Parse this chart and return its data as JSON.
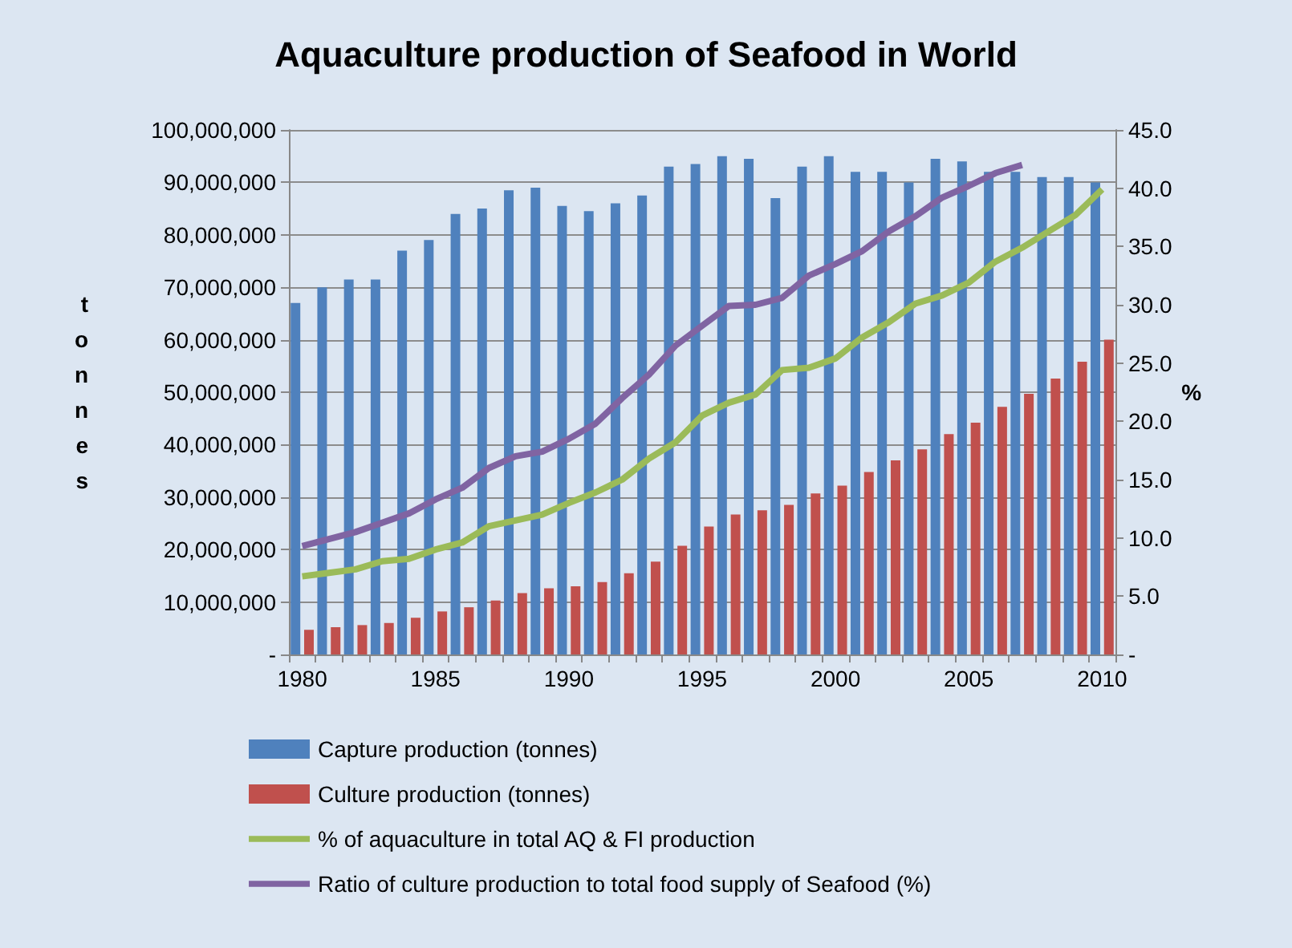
{
  "chart_data": {
    "type": "bar",
    "title": "Aquaculture production of Seafood in World",
    "ylabel": "tonnes",
    "y2label": "%",
    "categories": [
      "1980",
      null,
      null,
      null,
      null,
      "1985",
      null,
      null,
      null,
      null,
      "1990",
      null,
      null,
      null,
      null,
      "1995",
      null,
      null,
      null,
      null,
      "2000",
      null,
      null,
      null,
      null,
      "2005",
      null,
      null,
      null,
      null,
      "2010"
    ],
    "series": [
      {
        "name": "Capture production (tonnes)",
        "color": "#4f81bd",
        "values": [
          67000000,
          70000000,
          71500000,
          71500000,
          77000000,
          79000000,
          84000000,
          85000000,
          88500000,
          89000000,
          85500000,
          84500000,
          86000000,
          87500000,
          93000000,
          93500000,
          95000000,
          94500000,
          87000000,
          93000000,
          95000000,
          92000000,
          92000000,
          90000000,
          94500000,
          94000000,
          92000000,
          92000000,
          91000000,
          91000000,
          90000000
        ]
      },
      {
        "name": "Culture production (tonnes)",
        "color": "#c0504d",
        "values": [
          4700000,
          5200000,
          5600000,
          6000000,
          7000000,
          8200000,
          9000000,
          10300000,
          11700000,
          12600000,
          13000000,
          13800000,
          15500000,
          17700000,
          20700000,
          24400000,
          26700000,
          27500000,
          28500000,
          30700000,
          32200000,
          34800000,
          37000000,
          39100000,
          42000000,
          44200000,
          47200000,
          49700000,
          52600000,
          55800000,
          60000000
        ]
      },
      {
        "name": "% of aquaculture in total AQ & FI production",
        "type": "line",
        "axis": "y2",
        "color": "#9bbb59",
        "values": [
          6.7,
          7.0,
          7.3,
          8.0,
          8.2,
          9.0,
          9.6,
          11.0,
          11.5,
          12.0,
          13.0,
          13.9,
          15.0,
          16.8,
          18.2,
          20.5,
          21.6,
          22.3,
          24.4,
          24.6,
          25.4,
          27.2,
          28.5,
          30.1,
          30.8,
          31.9,
          33.7,
          34.9,
          36.3,
          37.7,
          39.9
        ]
      },
      {
        "name": "Ratio of culture production to total food supply of Seafood (%)",
        "type": "line",
        "axis": "y2",
        "color": "#8064a2",
        "values": [
          9.3,
          9.9,
          10.5,
          11.3,
          12.1,
          13.3,
          14.3,
          16.0,
          17.0,
          17.4,
          18.5,
          19.8,
          22.0,
          24.0,
          26.5,
          28.2,
          29.9,
          30.0,
          30.6,
          32.5,
          33.5,
          34.6,
          36.3,
          37.6,
          39.2,
          40.2,
          41.3,
          42.0,
          null,
          null,
          null
        ]
      }
    ],
    "ylim": [
      0,
      100000000
    ],
    "yticks": [
      {
        "value": 0,
        "label": "-"
      },
      {
        "value": 10000000,
        "label": "10,000,000"
      },
      {
        "value": 20000000,
        "label": "20,000,000"
      },
      {
        "value": 30000000,
        "label": "30,000,000"
      },
      {
        "value": 40000000,
        "label": "40,000,000"
      },
      {
        "value": 50000000,
        "label": "50,000,000"
      },
      {
        "value": 60000000,
        "label": "60,000,000"
      },
      {
        "value": 70000000,
        "label": "70,000,000"
      },
      {
        "value": 80000000,
        "label": "80,000,000"
      },
      {
        "value": 90000000,
        "label": "90,000,000"
      },
      {
        "value": 100000000,
        "label": "100,000,000"
      }
    ],
    "y2lim": [
      0,
      45
    ],
    "y2ticks": [
      {
        "value": 0,
        "label": "-"
      },
      {
        "value": 5,
        "label": "5.0"
      },
      {
        "value": 10,
        "label": "10.0"
      },
      {
        "value": 15,
        "label": "15.0"
      },
      {
        "value": 20,
        "label": "20.0"
      },
      {
        "value": 25,
        "label": "25.0"
      },
      {
        "value": 30,
        "label": "30.0"
      },
      {
        "value": 35,
        "label": "35.0"
      },
      {
        "value": 40,
        "label": "40.0"
      },
      {
        "value": 45,
        "label": "45.0"
      }
    ],
    "grid": "y",
    "legend": "bottom",
    "marker": "none",
    "line_style": "solid"
  }
}
